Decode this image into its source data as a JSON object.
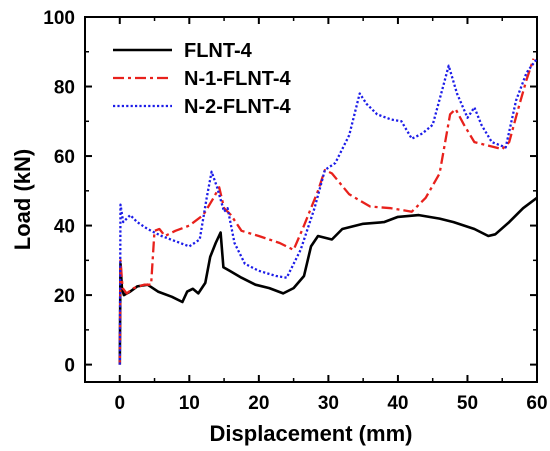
{
  "chart_data": {
    "type": "line",
    "xlabel": "Displacement (mm)",
    "ylabel": "Load (kN)",
    "xlim": [
      -5,
      60
    ],
    "ylim": [
      -5,
      100
    ],
    "xticks": [
      0,
      10,
      20,
      30,
      40,
      50,
      60
    ],
    "yticks": [
      0,
      20,
      40,
      60,
      80,
      100
    ],
    "grid": false,
    "legend_position": "top-left",
    "series": [
      {
        "name": "FLNT-4",
        "color": "#000000",
        "style": "solid",
        "points": [
          [
            0,
            0
          ],
          [
            0.1,
            29
          ],
          [
            0.3,
            22
          ],
          [
            0.6,
            20
          ],
          [
            1.5,
            21
          ],
          [
            2.5,
            22.5
          ],
          [
            4,
            23
          ],
          [
            5.5,
            21
          ],
          [
            7.5,
            19.5
          ],
          [
            9,
            18
          ],
          [
            9.7,
            21
          ],
          [
            10.5,
            21.8
          ],
          [
            11.3,
            20.5
          ],
          [
            12.3,
            23.5
          ],
          [
            13,
            31
          ],
          [
            13.8,
            35
          ],
          [
            14.5,
            38
          ],
          [
            14.9,
            28
          ],
          [
            15.8,
            27
          ],
          [
            17.5,
            25
          ],
          [
            19.5,
            23
          ],
          [
            21.5,
            22
          ],
          [
            23.5,
            20.5
          ],
          [
            25,
            22
          ],
          [
            26.5,
            25.5
          ],
          [
            27.5,
            34
          ],
          [
            28.5,
            37
          ],
          [
            30.5,
            36
          ],
          [
            32,
            39
          ],
          [
            35,
            40.5
          ],
          [
            38,
            41
          ],
          [
            40,
            42.5
          ],
          [
            43,
            43
          ],
          [
            46,
            42
          ],
          [
            48,
            41
          ],
          [
            51,
            39
          ],
          [
            53,
            37
          ],
          [
            54,
            37.5
          ],
          [
            56,
            41
          ],
          [
            58,
            45
          ],
          [
            60,
            48
          ]
        ]
      },
      {
        "name": "N-1-FLNT-4",
        "color": "#e8211c",
        "style": "dashdot",
        "points": [
          [
            0,
            0
          ],
          [
            0.1,
            30
          ],
          [
            0.4,
            22
          ],
          [
            1,
            20.5
          ],
          [
            2,
            22
          ],
          [
            3.5,
            23
          ],
          [
            4.5,
            23
          ],
          [
            5,
            38.5
          ],
          [
            5.7,
            39
          ],
          [
            6.5,
            37
          ],
          [
            8,
            38.5
          ],
          [
            10,
            40
          ],
          [
            12,
            43
          ],
          [
            13.5,
            48
          ],
          [
            14.3,
            51
          ],
          [
            15,
            45
          ],
          [
            16,
            43
          ],
          [
            17.5,
            38.5
          ],
          [
            20,
            37
          ],
          [
            23,
            35
          ],
          [
            25,
            33
          ],
          [
            26.5,
            40
          ],
          [
            28.5,
            50
          ],
          [
            29.5,
            56
          ],
          [
            30.5,
            55
          ],
          [
            33,
            49
          ],
          [
            36,
            45.5
          ],
          [
            39,
            45
          ],
          [
            42,
            44
          ],
          [
            44,
            48
          ],
          [
            46,
            55
          ],
          [
            47.5,
            72
          ],
          [
            48.3,
            73.5
          ],
          [
            49.5,
            69
          ],
          [
            51,
            64
          ],
          [
            53,
            63
          ],
          [
            55,
            62
          ],
          [
            56,
            64
          ],
          [
            57.5,
            75
          ],
          [
            58.5,
            82
          ],
          [
            59.5,
            88
          ]
        ]
      },
      {
        "name": "N-2-FLNT-4",
        "color": "#1c1ce8",
        "style": "dotted",
        "points": [
          [
            0,
            0
          ],
          [
            0.1,
            46
          ],
          [
            0.5,
            41
          ],
          [
            1.5,
            43
          ],
          [
            2.5,
            41
          ],
          [
            4,
            39
          ],
          [
            6,
            37
          ],
          [
            8,
            35.5
          ],
          [
            10,
            34
          ],
          [
            11.5,
            36
          ],
          [
            12.5,
            48
          ],
          [
            13.2,
            55.5
          ],
          [
            14,
            51
          ],
          [
            15,
            44
          ],
          [
            15.5,
            45
          ],
          [
            16.5,
            35
          ],
          [
            18,
            29
          ],
          [
            20,
            27
          ],
          [
            22.5,
            25.5
          ],
          [
            24,
            25
          ],
          [
            26,
            33
          ],
          [
            28,
            45
          ],
          [
            29.5,
            56
          ],
          [
            31,
            58
          ],
          [
            33,
            66
          ],
          [
            34.5,
            78
          ],
          [
            35.5,
            75
          ],
          [
            37,
            72
          ],
          [
            39,
            70.5
          ],
          [
            40.5,
            70
          ],
          [
            42,
            65
          ],
          [
            43.5,
            66.5
          ],
          [
            45,
            69
          ],
          [
            46.5,
            80
          ],
          [
            47.3,
            86
          ],
          [
            48.5,
            78
          ],
          [
            50,
            71
          ],
          [
            51,
            74
          ],
          [
            52,
            69
          ],
          [
            53.5,
            64
          ],
          [
            55.5,
            62.5
          ],
          [
            57,
            76
          ],
          [
            58.5,
            84
          ],
          [
            60,
            88
          ]
        ]
      }
    ]
  }
}
